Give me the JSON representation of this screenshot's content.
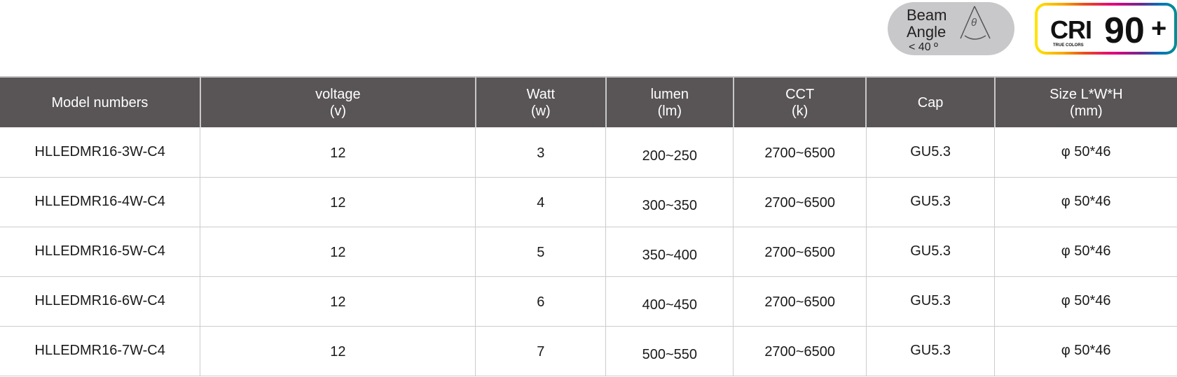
{
  "badges": {
    "beam_line1": "Beam",
    "beam_line2": "Angle",
    "beam_value": "< 40 º",
    "beam_symbol": "θ",
    "cri_label": "CRI",
    "cri_value": "90",
    "cri_plus": "+",
    "cri_sub": "TRUE COLORS"
  },
  "table": {
    "headers": [
      [
        "Model numbers",
        ""
      ],
      [
        "voltage",
        "(v)"
      ],
      [
        "Watt",
        "(w)"
      ],
      [
        "lumen",
        "(lm)"
      ],
      [
        "CCT",
        "(k)"
      ],
      [
        "Cap",
        ""
      ],
      [
        "Size L*W*H",
        "(mm)"
      ]
    ],
    "rows": [
      [
        "HLLEDMR16-3W-C4",
        "12",
        "3",
        "200~250",
        "2700~6500",
        "GU5.3",
        "φ 50*46"
      ],
      [
        "HLLEDMR16-4W-C4",
        "12",
        "4",
        "300~350",
        "2700~6500",
        "GU5.3",
        "φ 50*46"
      ],
      [
        "HLLEDMR16-5W-C4",
        "12",
        "5",
        "350~400",
        "2700~6500",
        "GU5.3",
        "φ 50*46"
      ],
      [
        "HLLEDMR16-6W-C4",
        "12",
        "6",
        "400~450",
        "2700~6500",
        "GU5.3",
        "φ 50*46"
      ],
      [
        "HLLEDMR16-7W-C4",
        "12",
        "7",
        "500~550",
        "2700~6500",
        "GU5.3",
        "φ 50*46"
      ]
    ]
  }
}
